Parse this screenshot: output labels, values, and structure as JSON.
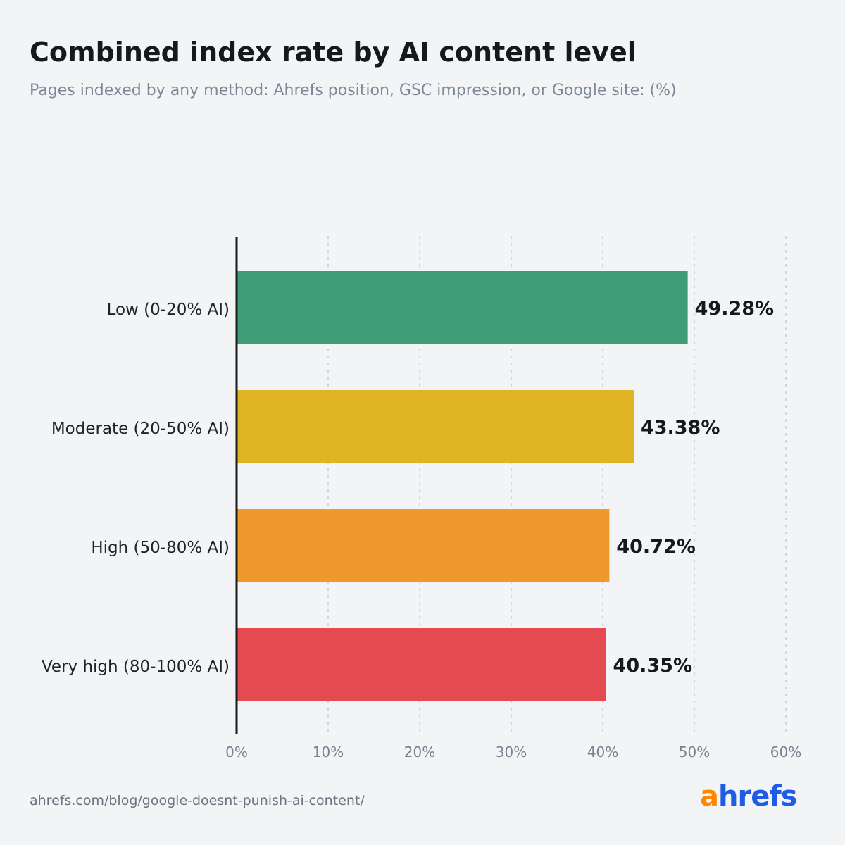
{
  "title": "Combined index rate by AI content level",
  "subtitle": "Pages indexed by any method: Ahrefs position, GSC impression, or Google site: (%)",
  "source": "ahrefs.com/blog/google-doesnt-punish-ai-content/",
  "logo": {
    "part1": "a",
    "part2": "hrefs",
    "color1": "#ff8800",
    "color2": "#1e5ce6"
  },
  "chart_data": {
    "type": "bar",
    "orientation": "horizontal",
    "title": "Combined index rate by AI content level",
    "subtitle": "Pages indexed by any method: Ahrefs position, GSC impression, or Google site: (%)",
    "categories": [
      "Low (0-20% AI)",
      "Moderate (20-50% AI)",
      "High (50-80% AI)",
      "Very high (80-100% AI)"
    ],
    "values": [
      49.28,
      43.38,
      40.72,
      40.35
    ],
    "value_labels": [
      "49.28%",
      "43.38%",
      "40.72%",
      "40.35%"
    ],
    "colors": [
      "#3f9e78",
      "#dfb422",
      "#ef992c",
      "#e44a4f"
    ],
    "xlim": [
      0,
      60
    ],
    "xticks": [
      0,
      10,
      20,
      30,
      40,
      50,
      60
    ],
    "xtick_labels": [
      "0%",
      "10%",
      "20%",
      "30%",
      "40%",
      "50%",
      "60%"
    ],
    "grid": "vertical dotted",
    "legend": "none"
  }
}
